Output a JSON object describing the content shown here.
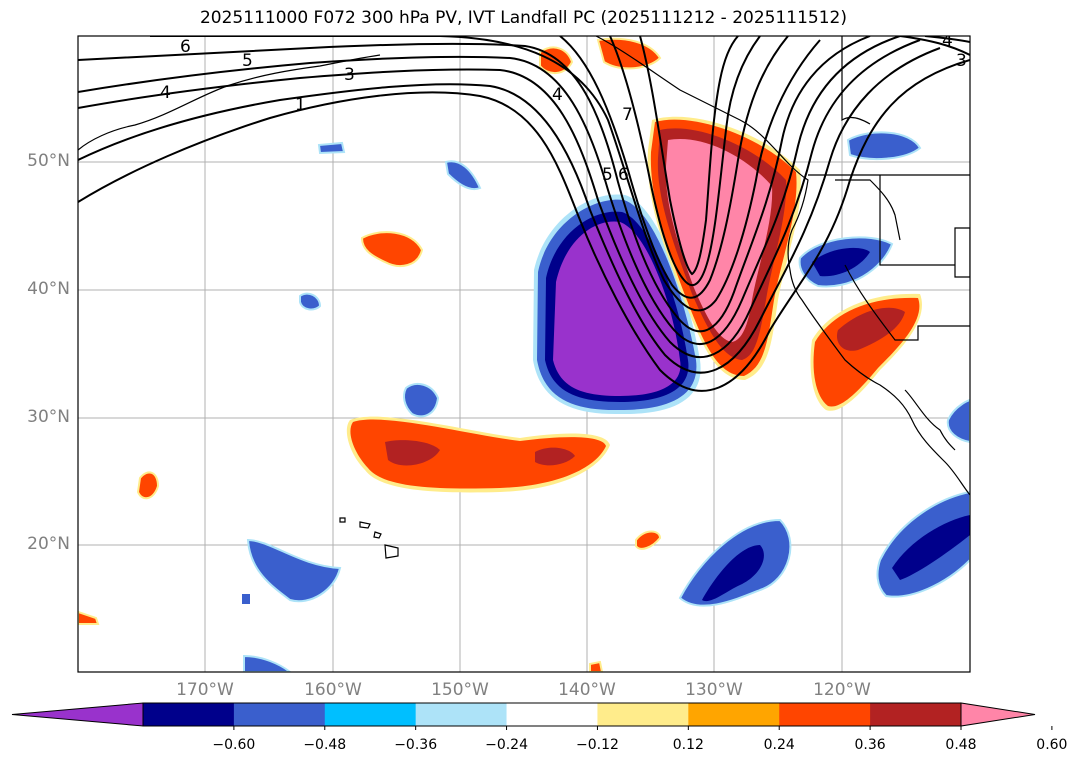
{
  "title": "2025111000 F072 300 hPa PV, IVT Landfall PC (2025111212 - 2025111512)",
  "map": {
    "lat_labels": [
      "50°N",
      "40°N",
      "30°N",
      "20°N"
    ],
    "lon_labels": [
      "170°W",
      "160°W",
      "150°W",
      "140°W",
      "130°W",
      "120°W"
    ],
    "pv_contour_labels": [
      "6",
      "5",
      "4",
      "3",
      "1",
      "4",
      "7",
      "5",
      "6",
      "4",
      "3"
    ]
  },
  "colorbar": {
    "colors": [
      "#9932CC",
      "#00008B",
      "#3A5FCD",
      "#00BFFF",
      "#ADE3F8",
      "#FFFFFF",
      "#FFEC8B",
      "#FFA500",
      "#FF4500",
      "#B22222",
      "#FF85A8"
    ],
    "ticks": [
      "−0.60",
      "−0.48",
      "−0.36",
      "−0.24",
      "−0.12",
      "0.12",
      "0.24",
      "0.36",
      "0.48",
      "0.60"
    ]
  }
}
